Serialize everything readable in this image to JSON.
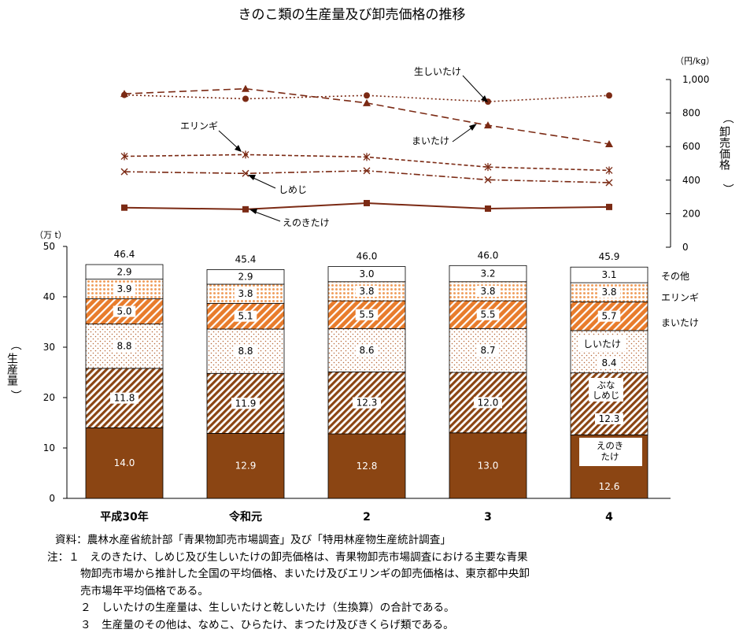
{
  "title": "きのこ類の生産量及び卸売価格の推移",
  "chart_data": [
    {
      "type": "line",
      "ylabel": "卸売価格",
      "unit": "（円/kg）",
      "ylim": [
        0,
        1000
      ],
      "yticks": [
        "0",
        "200",
        "400",
        "600",
        "800",
        "1,000"
      ],
      "categories": [
        "平成30年",
        "令和元",
        "2",
        "3",
        "4"
      ],
      "series": [
        {
          "name": "生しいたけ",
          "marker": "circle",
          "dash": "dotted",
          "values": [
            908,
            885,
            905,
            868,
            905
          ]
        },
        {
          "name": "まいたけ",
          "marker": "triangle",
          "dash": "dashed",
          "values": [
            915,
            945,
            860,
            727,
            615
          ]
        },
        {
          "name": "エリンギ",
          "marker": "star",
          "dash": "dashed-short",
          "values": [
            542,
            552,
            538,
            478,
            458
          ]
        },
        {
          "name": "しめじ",
          "marker": "x",
          "dash": "dash-dot",
          "values": [
            450,
            440,
            456,
            402,
            385
          ]
        },
        {
          "name": "えのきたけ",
          "marker": "square",
          "dash": "solid",
          "values": [
            236,
            226,
            263,
            230,
            240
          ]
        }
      ]
    },
    {
      "type": "bar",
      "stacked": true,
      "ylabel": "生産量",
      "unit": "（万 t）",
      "ylim": [
        0,
        50
      ],
      "yticks": [
        "0",
        "10",
        "20",
        "30",
        "40",
        "50"
      ],
      "categories": [
        "平成30年",
        "令和元",
        "2",
        "3",
        "4"
      ],
      "totals": [
        "46.4",
        "45.4",
        "46.0",
        "46.0",
        "45.9"
      ],
      "series": [
        {
          "name": "えのきたけ",
          "values": [
            14.0,
            12.9,
            12.8,
            13.0,
            12.6
          ],
          "labels": [
            "14.0",
            "12.9",
            "12.8",
            "13.0",
            "12.6"
          ]
        },
        {
          "name": "ぶなしめじ",
          "values": [
            11.8,
            11.9,
            12.3,
            12.0,
            12.3
          ],
          "labels": [
            "11.8",
            "11.9",
            "12.3",
            "12.0",
            "12.3"
          ]
        },
        {
          "name": "しいたけ",
          "values": [
            8.8,
            8.8,
            8.6,
            8.7,
            8.4
          ],
          "labels": [
            "8.8",
            "8.8",
            "8.6",
            "8.7",
            "8.4"
          ]
        },
        {
          "name": "まいたけ",
          "values": [
            5.0,
            5.1,
            5.5,
            5.5,
            5.7
          ],
          "labels": [
            "5.0",
            "5.1",
            "5.5",
            "5.5",
            "5.7"
          ]
        },
        {
          "name": "エリンギ",
          "values": [
            3.9,
            3.8,
            3.8,
            3.8,
            3.8
          ],
          "labels": [
            "3.9",
            "3.8",
            "3.8",
            "3.8",
            "3.8"
          ]
        },
        {
          "name": "その他",
          "values": [
            2.9,
            2.9,
            3.0,
            3.2,
            3.1
          ],
          "labels": [
            "2.9",
            "2.9",
            "3.0",
            "3.2",
            "3.1"
          ]
        }
      ]
    }
  ],
  "labels": {
    "enoki_l1": "えのき",
    "enoki_l2": "たけ",
    "buna_l1": "ぶな",
    "buna_l2": "しめじ"
  },
  "colors": {
    "line": "#7b2a14",
    "bar_dark": "#8b4513",
    "bar_orange": "#e87c2c",
    "bar_light": "#f3b27a"
  },
  "notes": {
    "source": "資料：農林水産省統計部「青果物卸売市場調査」及び「特用林産物生産統計調査」",
    "note1_a": "注：１　えのきたけ、しめじ及び生しいたけの卸売価格は、青果物卸売市場調査における主要な青果",
    "note1_b": "物卸売市場から推計した全国の平均価格、まいたけ及びエリンギの卸売価格は、東京都中央卸",
    "note1_c": "売市場年平均価格である。",
    "note2": "２　しいたけの生産量は、生しいたけと乾しいたけ（生換算）の合計である。",
    "note3": "３　生産量のその他は、なめこ、ひらたけ、まつたけ及びきくらげ類である。"
  }
}
